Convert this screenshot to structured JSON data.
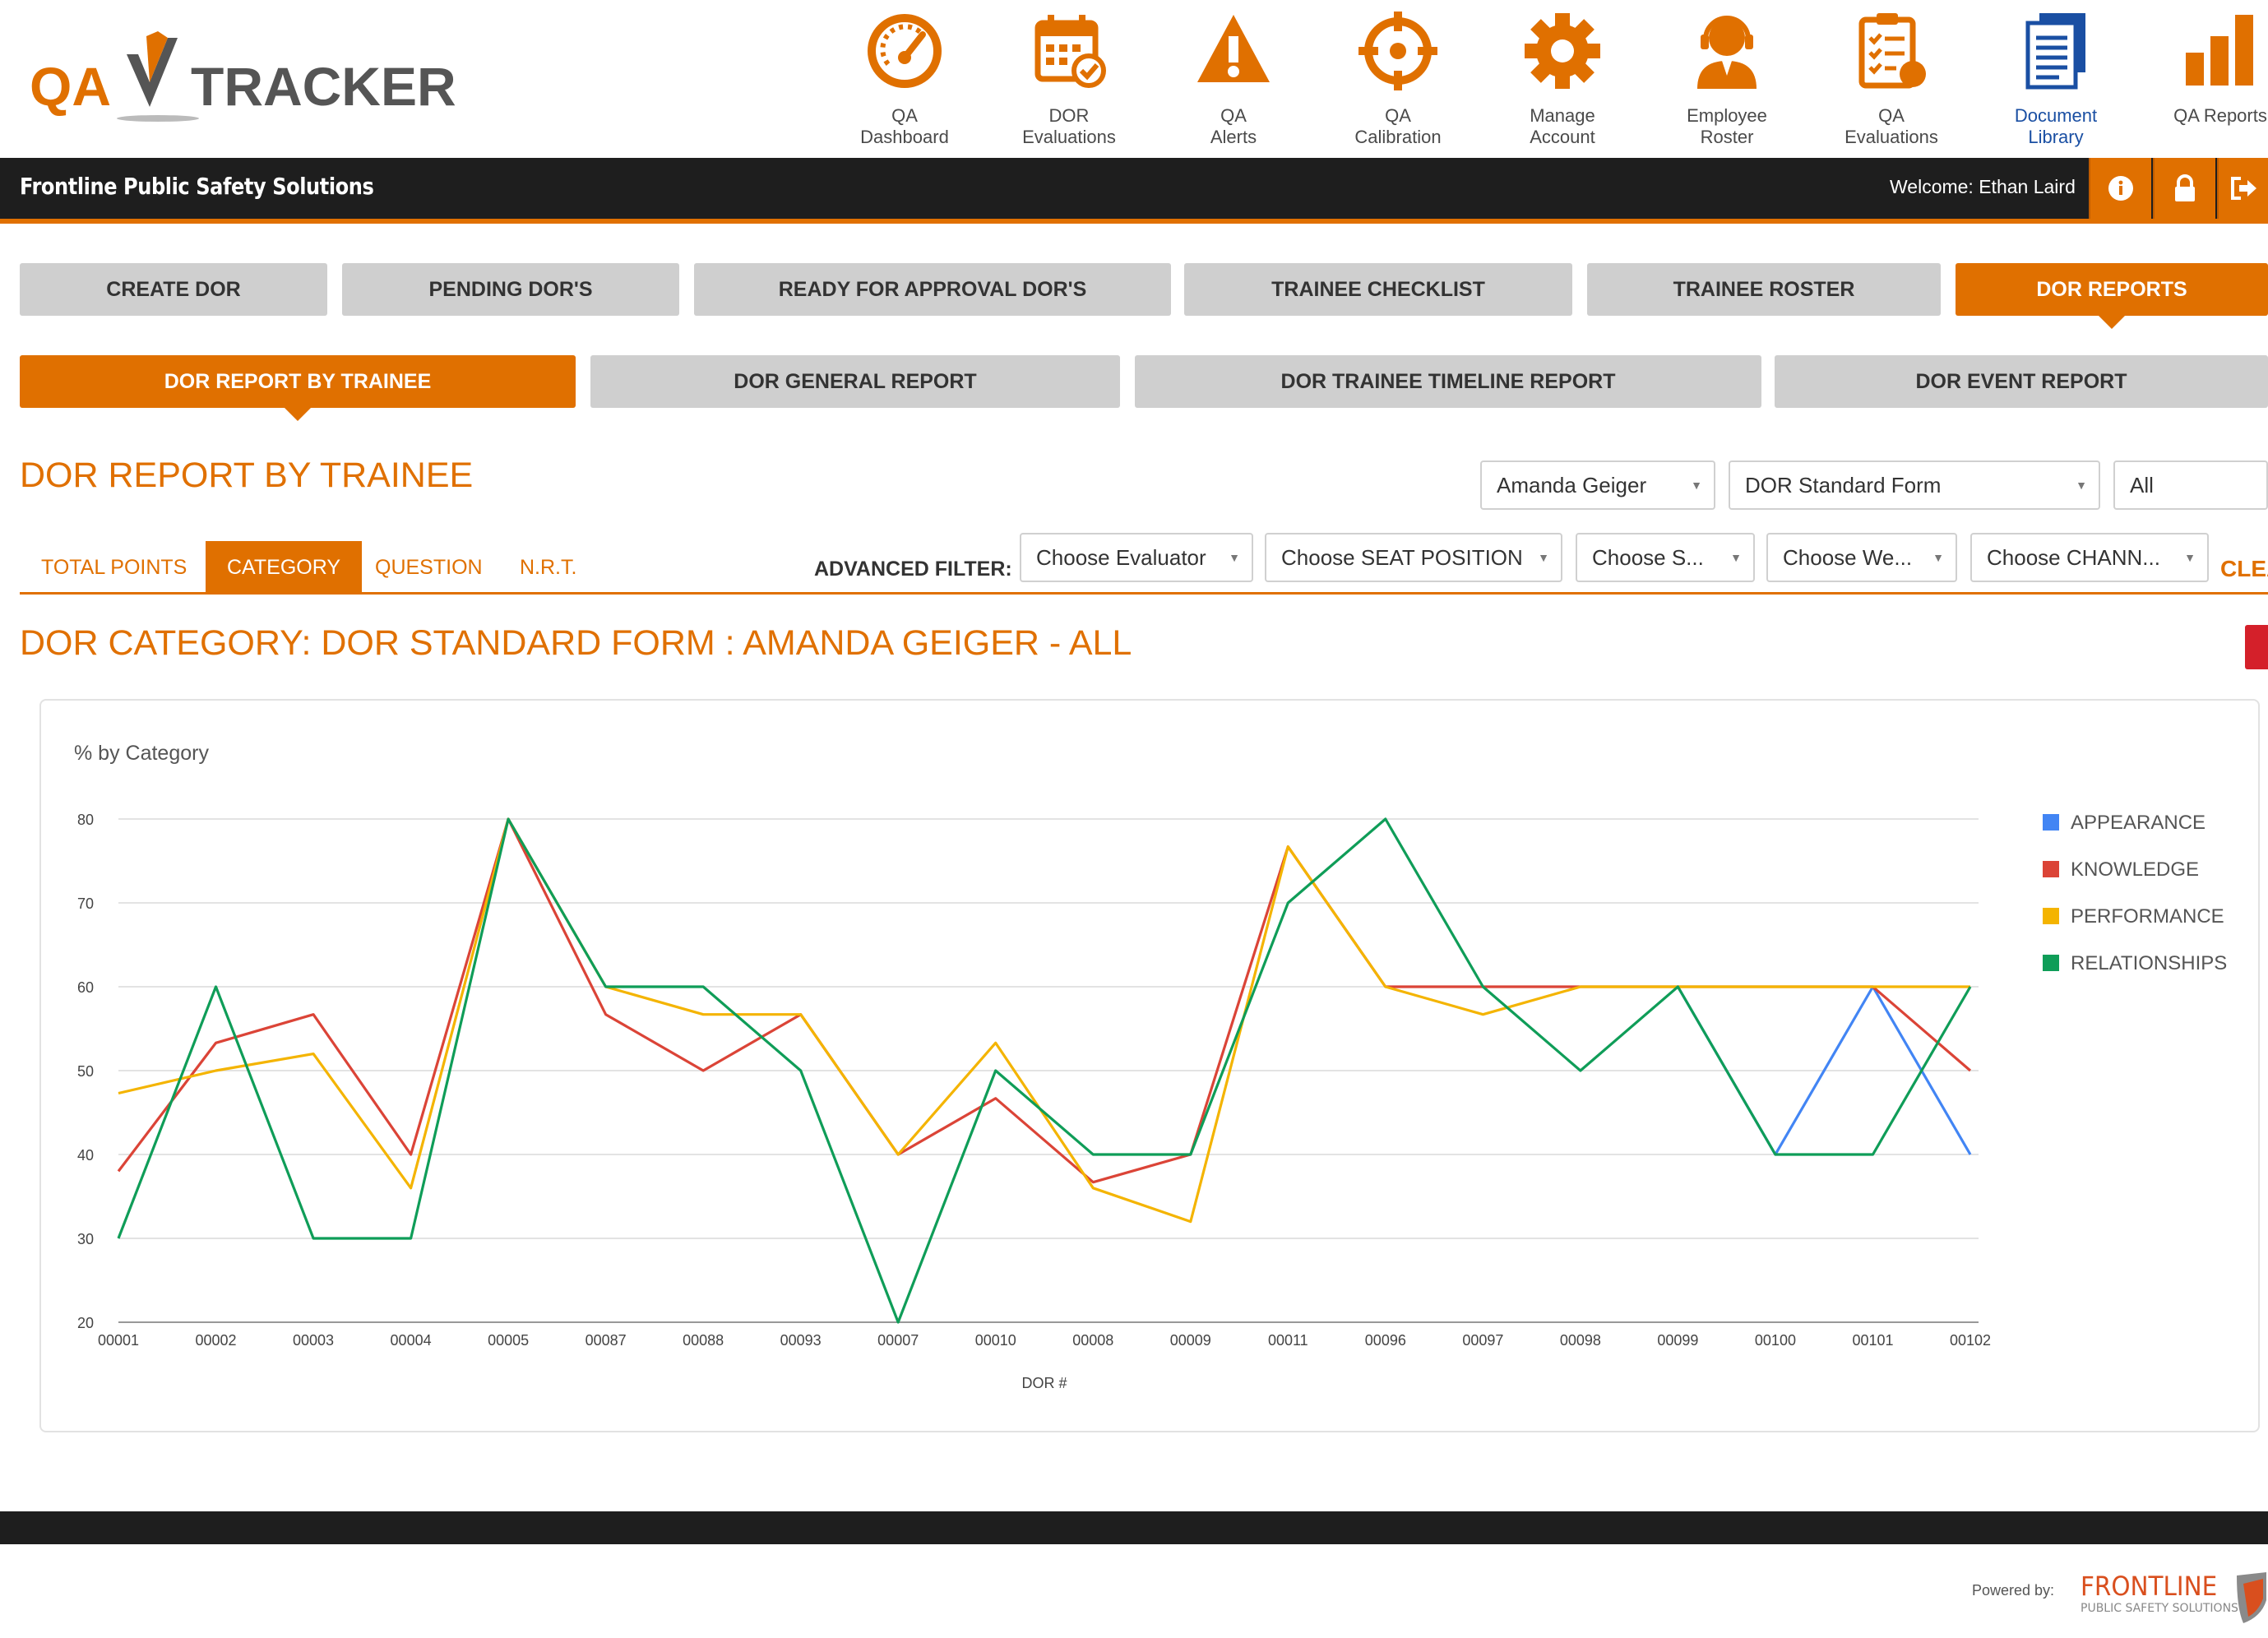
{
  "brand": {
    "logo_text_left": "QA",
    "logo_text_right": "TRACKER",
    "org_name": "Frontline Public Safety Solutions",
    "accent": "#e07000",
    "dark": "#1e1e1e",
    "nav_blue": "#1a4fa3"
  },
  "nav": [
    {
      "label": "QA\nDashboard",
      "icon": "gauge-icon"
    },
    {
      "label": "DOR\nEvaluations",
      "icon": "calendar-check-icon"
    },
    {
      "label": "QA\nAlerts",
      "icon": "warning-icon"
    },
    {
      "label": "QA\nCalibration",
      "icon": "crosshair-icon"
    },
    {
      "label": "Manage\nAccount",
      "icon": "gear-icon"
    },
    {
      "label": "Employee\nRoster",
      "icon": "headset-user-icon"
    },
    {
      "label": "QA\nEvaluations",
      "icon": "clipboard-checklist-icon"
    },
    {
      "label": "Document\nLibrary",
      "icon": "documents-icon",
      "active": true
    },
    {
      "label": "QA Reports",
      "icon": "bar-chart-icon"
    }
  ],
  "topbar": {
    "welcome": "Welcome: Ethan Laird",
    "buttons": [
      "info-icon",
      "lock-icon",
      "logout-icon"
    ]
  },
  "main_tabs": [
    {
      "label": "CREATE DOR"
    },
    {
      "label": "PENDING DOR'S"
    },
    {
      "label": "READY FOR APPROVAL DOR'S"
    },
    {
      "label": "TRAINEE CHECKLIST"
    },
    {
      "label": "TRAINEE ROSTER"
    },
    {
      "label": "DOR REPORTS",
      "active": true
    }
  ],
  "report_tabs": [
    {
      "label": "DOR REPORT BY TRAINEE",
      "active": true
    },
    {
      "label": "DOR GENERAL REPORT"
    },
    {
      "label": "DOR TRAINEE TIMELINE REPORT"
    },
    {
      "label": "DOR EVENT REPORT"
    }
  ],
  "page_title": "DOR REPORT BY TRAINEE",
  "filters": {
    "trainee": "Amanda Geiger",
    "form": "DOR Standard Form",
    "scope": "All"
  },
  "view_tabs": [
    {
      "label": "TOTAL POINTS"
    },
    {
      "label": "CATEGORY",
      "active": true
    },
    {
      "label": "QUESTION"
    },
    {
      "label": "N.R.T."
    }
  ],
  "advanced_filter": {
    "label": "ADVANCED FILTER:",
    "evaluator": "Choose Evaluator",
    "seat_position": "Choose SEAT POSITION",
    "shift": "Choose S...",
    "weather": "Choose We...",
    "channel": "Choose CHANN...",
    "clear": "CLEAR"
  },
  "report_heading": "DOR CATEGORY: DOR STANDARD FORM : AMANDA GEIGER - ALL",
  "chart_data": {
    "type": "line",
    "title": "% by Category",
    "xlabel": "DOR #",
    "ylabel": "",
    "ylim": [
      20,
      80
    ],
    "yticks": [
      20,
      30,
      40,
      50,
      60,
      70,
      80
    ],
    "grid": true,
    "legend_position": "right",
    "categories": [
      "00001",
      "00002",
      "00003",
      "00004",
      "00005",
      "00087",
      "00088",
      "00093",
      "00007",
      "00010",
      "00008",
      "00009",
      "00011",
      "00096",
      "00097",
      "00098",
      "00099",
      "00100",
      "00101",
      "00102"
    ],
    "series": [
      {
        "name": "APPEARANCE",
        "color": "#4285f4",
        "values": [
          null,
          null,
          null,
          null,
          null,
          null,
          null,
          null,
          null,
          null,
          null,
          null,
          null,
          null,
          null,
          null,
          60,
          40,
          60,
          40
        ]
      },
      {
        "name": "KNOWLEDGE",
        "color": "#db4437",
        "values": [
          38,
          53.3,
          56.7,
          40,
          80,
          56.7,
          50,
          56.7,
          40,
          46.7,
          36.7,
          40,
          76.7,
          60,
          60,
          60,
          60,
          60,
          60,
          50
        ]
      },
      {
        "name": "PERFORMANCE",
        "color": "#f4b400",
        "values": [
          47.3,
          50,
          52,
          36,
          80,
          60,
          56.7,
          56.7,
          40,
          53.3,
          36,
          32,
          76.7,
          60,
          56.7,
          60,
          60,
          60,
          60,
          60
        ]
      },
      {
        "name": "RELATIONSHIPS",
        "color": "#0f9d58",
        "values": [
          30,
          60,
          30,
          30,
          80,
          60,
          60,
          50,
          20,
          50,
          40,
          40,
          70,
          80,
          60,
          50,
          60,
          40,
          40,
          60
        ]
      }
    ]
  },
  "footer": {
    "powered_by": "Powered by:",
    "brand": "FRONTLINE",
    "brand_sub": "PUBLIC SAFETY SOLUTIONS"
  }
}
